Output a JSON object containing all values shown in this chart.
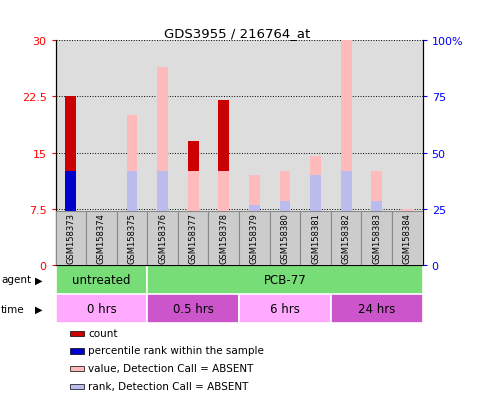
{
  "title": "GDS3955 / 216764_at",
  "samples": [
    "GSM158373",
    "GSM158374",
    "GSM158375",
    "GSM158376",
    "GSM158377",
    "GSM158378",
    "GSM158379",
    "GSM158380",
    "GSM158381",
    "GSM158382",
    "GSM158383",
    "GSM158384"
  ],
  "count_values": [
    22.5,
    0,
    0,
    0,
    16.5,
    22,
    0,
    0,
    0,
    0,
    0,
    0
  ],
  "percentile_rank": [
    41.7,
    0,
    0,
    0,
    40.0,
    41.7,
    0,
    0,
    0,
    0,
    0,
    0
  ],
  "value_absent": [
    0,
    21.7,
    66.7,
    88.3,
    41.7,
    41.7,
    40.0,
    41.7,
    48.3,
    100,
    41.7,
    25.0
  ],
  "rank_absent": [
    0,
    0,
    41.7,
    41.7,
    0,
    0,
    26.7,
    28.3,
    40.0,
    41.7,
    28.3,
    0
  ],
  "ylim_left": [
    0,
    30
  ],
  "ylim_right": [
    0,
    100
  ],
  "yticks_left": [
    0,
    7.5,
    15,
    22.5,
    30
  ],
  "yticks_right": [
    0,
    25,
    50,
    75,
    100
  ],
  "ytick_labels_left": [
    "0",
    "7.5",
    "15",
    "22.5",
    "30"
  ],
  "ytick_labels_right": [
    "0",
    "25",
    "50",
    "75",
    "100%"
  ],
  "agent_groups": [
    {
      "label": "untreated",
      "start": 0,
      "end": 3,
      "color": "#77dd77"
    },
    {
      "label": "PCB-77",
      "start": 3,
      "end": 12,
      "color": "#77dd77"
    }
  ],
  "time_groups": [
    {
      "label": "0 hrs",
      "start": 0,
      "end": 3,
      "color": "#ffaaff"
    },
    {
      "label": "0.5 hrs",
      "start": 3,
      "end": 6,
      "color": "#cc55cc"
    },
    {
      "label": "6 hrs",
      "start": 6,
      "end": 9,
      "color": "#ffaaff"
    },
    {
      "label": "24 hrs",
      "start": 9,
      "end": 12,
      "color": "#cc55cc"
    }
  ],
  "color_count": "#cc0000",
  "color_percentile": "#0000cc",
  "color_value_absent": "#ffbbbb",
  "color_rank_absent": "#bbbbee",
  "bar_width": 0.35,
  "plot_bg": "#dddddd",
  "cell_bg": "#cccccc",
  "cell_border": "#888888",
  "legend_items": [
    {
      "color": "#cc0000",
      "label": "count"
    },
    {
      "color": "#0000cc",
      "label": "percentile rank within the sample"
    },
    {
      "color": "#ffbbbb",
      "label": "value, Detection Call = ABSENT"
    },
    {
      "color": "#bbbbee",
      "label": "rank, Detection Call = ABSENT"
    }
  ]
}
